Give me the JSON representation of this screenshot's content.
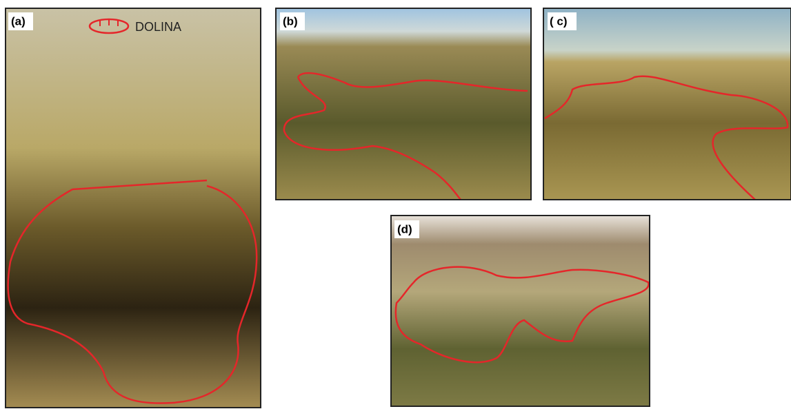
{
  "panels": [
    {
      "label": "(a)"
    },
    {
      "label": "(b)"
    },
    {
      "label": "( c)"
    },
    {
      "label": "(d)"
    }
  ],
  "legend": {
    "label": "DOLINA"
  }
}
